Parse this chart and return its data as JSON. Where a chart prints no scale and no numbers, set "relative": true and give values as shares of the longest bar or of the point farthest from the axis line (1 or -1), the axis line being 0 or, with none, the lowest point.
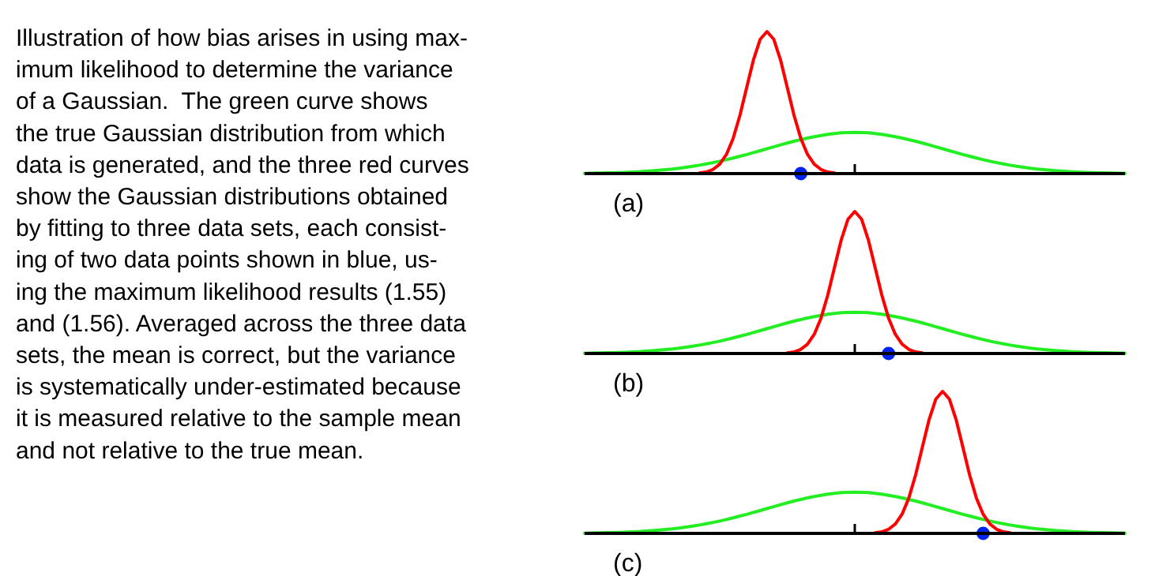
{
  "chart_data": [
    {
      "type": "other",
      "annotations": [
        "Illustration of how bias arises in using max-\nimum likelihood to determine the variance\nof a Gaussian.  The green curve shows\nthe true Gaussian distribution from which\ndata is generated, and the three red curves\nshow the Gaussian distributions obtained\nby fitting to three data sets, each consist-\ning of two data points shown in blue, us-\ning the maximum likelihood results (1.55)\nand (1.56). Averaged across the three data\nsets, the mean is correct, but the variance\nis systematically under-estimated because\nit is measured relative to the sample mean\nand not relative to the true mean."
      ]
    },
    {
      "type": "line",
      "title": "(a)",
      "relative": true,
      "categories": [
        null,
        null,
        null,
        null,
        null,
        null,
        null,
        null,
        null,
        null,
        null,
        null,
        null,
        null,
        null,
        null,
        null,
        null,
        null,
        null,
        null,
        null,
        null,
        null,
        null,
        null,
        null,
        null,
        null,
        null,
        null,
        null,
        null,
        null,
        null,
        null,
        null,
        null,
        null,
        null,
        null,
        null,
        null,
        null,
        null,
        null,
        null,
        null,
        null,
        null,
        null,
        null,
        null,
        null,
        null,
        null,
        null,
        null,
        null,
        null,
        null,
        null,
        null,
        null,
        null,
        null,
        null,
        null,
        null,
        null,
        null,
        null,
        null,
        null,
        null,
        null,
        null,
        null,
        null,
        null,
        null
      ],
      "series": [
        {
          "color": "#22ee22",
          "values": [
            0.002,
            0.003,
            0.004,
            0.005,
            0.006,
            0.007,
            0.009,
            0.011,
            0.013,
            0.016,
            0.019,
            0.023,
            0.028,
            0.032,
            0.038,
            0.044,
            0.051,
            0.059,
            0.068,
            0.077,
            0.087,
            0.098,
            0.11,
            0.122,
            0.134,
            0.148,
            0.161,
            0.175,
            0.188,
            0.202,
            0.215,
            0.228,
            0.239,
            0.25,
            0.26,
            0.268,
            0.276,
            0.282,
            0.287,
            0.289,
            0.29,
            0.289,
            0.287,
            0.282,
            0.276,
            0.268,
            0.26,
            0.25,
            0.239,
            0.228,
            0.215,
            0.202,
            0.188,
            0.175,
            0.161,
            0.148,
            0.134,
            0.122,
            0.11,
            0.098,
            0.087,
            0.077,
            0.068,
            0.059,
            0.051,
            0.044,
            0.038,
            0.032,
            0.028,
            0.023,
            0.019,
            0.016,
            0.013,
            0.011,
            0.009,
            0.007,
            0.006,
            0.005,
            0.004,
            0.003,
            0.002
          ]
        },
        {
          "color": "#ff0000",
          "values": [
            null,
            null,
            null,
            null,
            null,
            null,
            null,
            null,
            null,
            null,
            null,
            null,
            null,
            null,
            null,
            null,
            null,
            0.004,
            0.011,
            0.029,
            0.066,
            0.135,
            0.249,
            0.411,
            0.607,
            0.801,
            0.946,
            1,
            0.946,
            0.801,
            0.607,
            0.411,
            0.249,
            0.135,
            0.066,
            0.029,
            0.011,
            0.004,
            null,
            null,
            null,
            null,
            null,
            null,
            null,
            null,
            null,
            null,
            null,
            null,
            null,
            null,
            null,
            null,
            null,
            null,
            null,
            null,
            null,
            null,
            null,
            null,
            null,
            null,
            null,
            null,
            null,
            null,
            null,
            null,
            null,
            null,
            null,
            null,
            null,
            null,
            null,
            null,
            null,
            null,
            null
          ]
        },
        {
          "type": "line",
          "marker": "circle",
          "color": "#0022ee",
          "values": [
            null,
            null,
            null,
            null,
            null,
            null,
            null,
            null,
            null,
            null,
            null,
            null,
            null,
            null,
            null,
            null,
            null,
            null,
            null,
            null,
            null,
            null,
            null,
            null,
            null,
            null,
            null,
            null,
            null,
            null,
            null,
            null,
            0,
            null,
            null,
            null,
            null,
            null,
            null,
            null,
            null,
            null,
            null,
            null,
            null,
            null,
            null,
            null,
            null,
            null,
            null,
            null,
            null,
            null,
            null,
            null,
            null,
            null,
            null,
            null,
            null,
            null,
            null,
            null,
            null,
            null,
            null,
            null,
            null,
            null,
            null,
            null,
            null,
            null,
            null,
            null,
            null,
            null,
            null,
            null,
            null
          ]
        }
      ]
    },
    {
      "type": "line",
      "title": "(b)",
      "relative": true,
      "categories": [
        null,
        null,
        null,
        null,
        null,
        null,
        null,
        null,
        null,
        null,
        null,
        null,
        null,
        null,
        null,
        null,
        null,
        null,
        null,
        null,
        null,
        null,
        null,
        null,
        null,
        null,
        null,
        null,
        null,
        null,
        null,
        null,
        null,
        null,
        null,
        null,
        null,
        null,
        null,
        null,
        null,
        null,
        null,
        null,
        null,
        null,
        null,
        null,
        null,
        null,
        null,
        null,
        null,
        null,
        null,
        null,
        null,
        null,
        null,
        null,
        null,
        null,
        null,
        null,
        null,
        null,
        null,
        null,
        null,
        null,
        null,
        null,
        null,
        null,
        null,
        null,
        null,
        null,
        null,
        null,
        null
      ],
      "series": [
        {
          "color": "#22ee22",
          "values": [
            0.002,
            0.003,
            0.004,
            0.005,
            0.006,
            0.007,
            0.009,
            0.011,
            0.013,
            0.016,
            0.019,
            0.023,
            0.028,
            0.032,
            0.038,
            0.044,
            0.051,
            0.059,
            0.068,
            0.077,
            0.087,
            0.098,
            0.11,
            0.122,
            0.134,
            0.148,
            0.161,
            0.175,
            0.188,
            0.202,
            0.215,
            0.228,
            0.239,
            0.25,
            0.26,
            0.268,
            0.276,
            0.282,
            0.287,
            0.289,
            0.29,
            0.289,
            0.287,
            0.282,
            0.276,
            0.268,
            0.26,
            0.25,
            0.239,
            0.228,
            0.215,
            0.202,
            0.188,
            0.175,
            0.161,
            0.148,
            0.134,
            0.122,
            0.11,
            0.098,
            0.087,
            0.077,
            0.068,
            0.059,
            0.051,
            0.044,
            0.038,
            0.032,
            0.028,
            0.023,
            0.019,
            0.016,
            0.013,
            0.011,
            0.009,
            0.007,
            0.006,
            0.005,
            0.004,
            0.003,
            0.002
          ]
        },
        {
          "color": "#ff0000",
          "values": [
            null,
            null,
            null,
            null,
            null,
            null,
            null,
            null,
            null,
            null,
            null,
            null,
            null,
            null,
            null,
            null,
            null,
            null,
            null,
            null,
            null,
            null,
            null,
            null,
            null,
            null,
            null,
            null,
            null,
            null,
            0.004,
            0.011,
            0.029,
            0.066,
            0.135,
            0.249,
            0.411,
            0.607,
            0.801,
            0.946,
            1,
            0.946,
            0.801,
            0.607,
            0.411,
            0.249,
            0.135,
            0.066,
            0.029,
            0.011,
            0.004,
            null,
            null,
            null,
            null,
            null,
            null,
            null,
            null,
            null,
            null,
            null,
            null,
            null,
            null,
            null,
            null,
            null,
            null,
            null,
            null,
            null,
            null,
            null,
            null,
            null,
            null,
            null,
            null,
            null,
            null
          ]
        },
        {
          "type": "line",
          "marker": "circle",
          "color": "#0022ee",
          "values": [
            null,
            null,
            null,
            null,
            null,
            null,
            null,
            null,
            null,
            null,
            null,
            null,
            null,
            null,
            null,
            null,
            null,
            null,
            null,
            null,
            null,
            null,
            null,
            null,
            null,
            null,
            null,
            null,
            null,
            null,
            null,
            null,
            null,
            null,
            null,
            null,
            null,
            null,
            null,
            null,
            null,
            null,
            null,
            null,
            null,
            0,
            null,
            null,
            null,
            null,
            null,
            null,
            null,
            null,
            null,
            null,
            null,
            null,
            null,
            null,
            null,
            null,
            null,
            null,
            null,
            null,
            null,
            null,
            null,
            null,
            null,
            null,
            null,
            null,
            null,
            null,
            null,
            null,
            null,
            null,
            null
          ]
        }
      ]
    },
    {
      "type": "line",
      "title": "(c)",
      "relative": true,
      "categories": [
        null,
        null,
        null,
        null,
        null,
        null,
        null,
        null,
        null,
        null,
        null,
        null,
        null,
        null,
        null,
        null,
        null,
        null,
        null,
        null,
        null,
        null,
        null,
        null,
        null,
        null,
        null,
        null,
        null,
        null,
        null,
        null,
        null,
        null,
        null,
        null,
        null,
        null,
        null,
        null,
        null,
        null,
        null,
        null,
        null,
        null,
        null,
        null,
        null,
        null,
        null,
        null,
        null,
        null,
        null,
        null,
        null,
        null,
        null,
        null,
        null,
        null,
        null,
        null,
        null,
        null,
        null,
        null,
        null,
        null,
        null,
        null,
        null,
        null,
        null,
        null,
        null,
        null,
        null,
        null,
        null
      ],
      "series": [
        {
          "color": "#22ee22",
          "values": [
            0.002,
            0.003,
            0.004,
            0.005,
            0.006,
            0.007,
            0.009,
            0.011,
            0.013,
            0.016,
            0.019,
            0.023,
            0.028,
            0.032,
            0.038,
            0.044,
            0.051,
            0.059,
            0.068,
            0.077,
            0.087,
            0.098,
            0.11,
            0.122,
            0.134,
            0.148,
            0.161,
            0.175,
            0.188,
            0.202,
            0.215,
            0.228,
            0.239,
            0.25,
            0.26,
            0.268,
            0.276,
            0.282,
            0.287,
            0.289,
            0.29,
            0.289,
            0.287,
            0.282,
            0.276,
            0.268,
            0.26,
            0.25,
            0.239,
            0.228,
            0.215,
            0.202,
            0.188,
            0.175,
            0.161,
            0.148,
            0.134,
            0.122,
            0.11,
            0.098,
            0.087,
            0.077,
            0.068,
            0.059,
            0.051,
            0.044,
            0.038,
            0.032,
            0.028,
            0.023,
            0.019,
            0.016,
            0.013,
            0.011,
            0.009,
            0.007,
            0.006,
            0.005,
            0.004,
            0.003,
            0.002
          ]
        },
        {
          "color": "#ff0000",
          "values": [
            null,
            null,
            null,
            null,
            null,
            null,
            null,
            null,
            null,
            null,
            null,
            null,
            null,
            null,
            null,
            null,
            null,
            null,
            null,
            null,
            null,
            null,
            null,
            null,
            null,
            null,
            null,
            null,
            null,
            null,
            null,
            null,
            null,
            null,
            null,
            null,
            null,
            null,
            null,
            null,
            null,
            null,
            null,
            0.004,
            0.011,
            0.029,
            0.066,
            0.135,
            0.249,
            0.411,
            0.607,
            0.801,
            0.946,
            1,
            0.946,
            0.801,
            0.607,
            0.411,
            0.249,
            0.135,
            0.066,
            0.029,
            0.011,
            0.004,
            null,
            null,
            null,
            null,
            null,
            null,
            null,
            null,
            null,
            null,
            null,
            null,
            null,
            null,
            null,
            null,
            null
          ]
        },
        {
          "type": "line",
          "marker": "circle",
          "color": "#0022ee",
          "values": [
            null,
            null,
            null,
            null,
            null,
            null,
            null,
            null,
            null,
            null,
            null,
            null,
            null,
            null,
            null,
            null,
            null,
            null,
            null,
            null,
            null,
            null,
            null,
            null,
            null,
            null,
            null,
            null,
            null,
            null,
            null,
            null,
            null,
            null,
            null,
            null,
            null,
            null,
            null,
            null,
            null,
            null,
            null,
            null,
            null,
            null,
            null,
            null,
            null,
            null,
            null,
            null,
            null,
            null,
            null,
            null,
            null,
            null,
            null,
            0,
            null,
            null,
            null,
            null,
            null,
            null,
            null,
            null,
            null,
            null,
            null,
            null,
            null,
            null,
            null,
            null,
            null,
            null,
            null,
            null,
            null
          ]
        }
      ]
    }
  ]
}
